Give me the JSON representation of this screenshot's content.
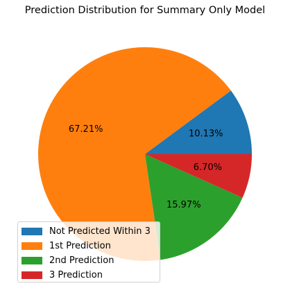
{
  "chart_data": {
    "type": "pie",
    "title": "Prediction Distribution for Summary Only Model",
    "slices": [
      {
        "label": "Not Predicted Within 3",
        "value": 10.13,
        "pct_label": "10.13%",
        "color": "#1f77b4"
      },
      {
        "label": "1st Prediction",
        "value": 67.21,
        "pct_label": "67.21%",
        "color": "#ff7f0e"
      },
      {
        "label": "2nd Prediction",
        "value": 15.97,
        "pct_label": "15.97%",
        "color": "#2ca02c"
      },
      {
        "label": "3 Prediction",
        "value": 6.7,
        "pct_label": "6.70%",
        "color": "#d62728"
      }
    ],
    "start_angle_deg": 0,
    "direction": "counterclockwise",
    "legend_position": "lower-left"
  }
}
